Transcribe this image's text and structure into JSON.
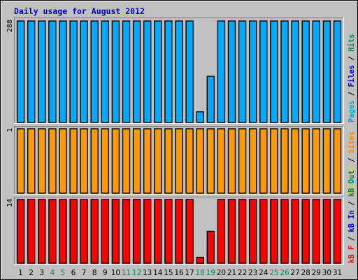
{
  "chart_data": {
    "type": "bar",
    "title": "Daily usage for August 2012",
    "categories": [
      "1",
      "2",
      "3",
      "4",
      "5",
      "6",
      "7",
      "8",
      "9",
      "10",
      "11",
      "12",
      "13",
      "14",
      "15",
      "16",
      "17",
      "18",
      "19",
      "20",
      "21",
      "22",
      "23",
      "24",
      "25",
      "26",
      "27",
      "28",
      "29",
      "30",
      "31"
    ],
    "weekend_days": [
      "4",
      "5",
      "11",
      "12",
      "18",
      "19",
      "25",
      "26"
    ],
    "panels": [
      {
        "name": "hits-panel",
        "max_label": "288",
        "ymax": 288,
        "legend": [
          {
            "text": "Pages",
            "color": "#00aacc"
          },
          {
            "text": " / ",
            "color": "#000000"
          },
          {
            "text": "Files",
            "color": "#0000cc"
          },
          {
            "text": " / ",
            "color": "#000000"
          },
          {
            "text": "Hits",
            "color": "#008866"
          }
        ],
        "series": [
          {
            "color": "#00aaff",
            "values": [
              286,
              286,
              286,
              286,
              286,
              286,
              286,
              286,
              286,
              286,
              286,
              286,
              286,
              286,
              286,
              286,
              286,
              30,
              130,
              286,
              286,
              286,
              286,
              286,
              286,
              286,
              286,
              286,
              286,
              286,
              286
            ]
          }
        ]
      },
      {
        "name": "visits-panel",
        "max_label": "1",
        "ymax": 1,
        "legend": [
          {
            "text": "Visits",
            "color": "#dddd00"
          },
          {
            "text": " / ",
            "color": "#000000"
          },
          {
            "text": "Sites",
            "color": "#ff8800"
          }
        ],
        "series": [
          {
            "color": "#ff9900",
            "values": [
              1,
              1,
              1,
              1,
              1,
              1,
              1,
              1,
              1,
              1,
              1,
              1,
              1,
              1,
              1,
              1,
              1,
              1,
              1,
              1,
              1,
              1,
              1,
              1,
              1,
              1,
              1,
              1,
              1,
              1,
              1
            ]
          }
        ]
      },
      {
        "name": "kbytes-panel",
        "max_label": "14",
        "ymax": 14,
        "legend": [
          {
            "text": "kB F",
            "color": "#ff0000"
          },
          {
            "text": " / ",
            "color": "#000000"
          },
          {
            "text": "kB In",
            "color": "#0000cc"
          },
          {
            "text": " / ",
            "color": "#000000"
          },
          {
            "text": "kB Out",
            "color": "#008866"
          }
        ],
        "series": [
          {
            "color": "#ff0000",
            "values": [
              14,
              14,
              14,
              14,
              14,
              14,
              14,
              14,
              14,
              14,
              14,
              14,
              14,
              14,
              14,
              14,
              14,
              1.3,
              7,
              14,
              14,
              14,
              14,
              14,
              14,
              14,
              14,
              14,
              14,
              14,
              14
            ]
          }
        ]
      }
    ]
  }
}
